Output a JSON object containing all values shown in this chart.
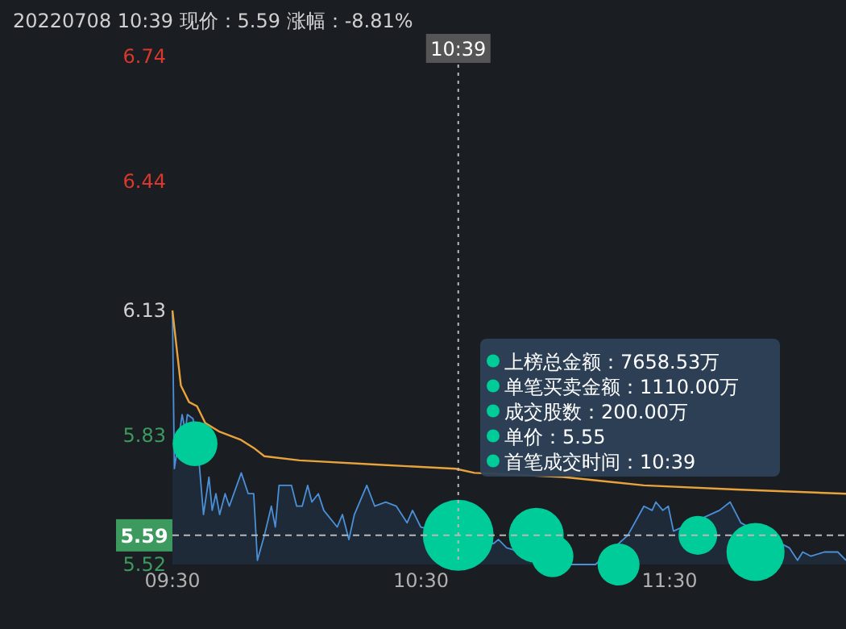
{
  "chart_data": {
    "type": "area",
    "title": "20220708 10:39 现价：5.59 涨幅：-8.81%",
    "xlim": [
      9.5,
      12.21
    ],
    "xticks": [
      {
        "value": 9.5,
        "label": "09:30"
      },
      {
        "value": 10.5,
        "label": "10:30"
      },
      {
        "value": 11.5,
        "label": "11:30"
      }
    ],
    "ylim": [
      5.52,
      6.74
    ],
    "yticks": [
      6.74,
      6.44,
      6.13,
      5.83,
      5.52
    ],
    "grid": false,
    "series": [
      {
        "type": "area",
        "color": "#4a90d9",
        "x": [
          9.5,
          9.508,
          9.539,
          9.552,
          9.56,
          9.583,
          9.604,
          9.625,
          9.647,
          9.66,
          9.675,
          9.69,
          9.712,
          9.729,
          9.777,
          9.805,
          9.827,
          9.842,
          9.87,
          9.898,
          9.914,
          9.929,
          9.979,
          10.0,
          10.022,
          10.044,
          10.061,
          10.087,
          10.109,
          10.163,
          10.184,
          10.21,
          10.232,
          10.282,
          10.314,
          10.358,
          10.401,
          10.444,
          10.466,
          10.499,
          10.791,
          10.812,
          10.845,
          11.072,
          11.202,
          11.332,
          11.397,
          11.43,
          11.445,
          11.473,
          11.495,
          11.516,
          11.701,
          11.744,
          11.787,
          11.982,
          12.015,
          12.036,
          12.069,
          12.123,
          12.177,
          12.21
        ],
        "values": [
          6.13,
          5.75,
          5.88,
          5.84,
          5.88,
          5.87,
          5.79,
          5.64,
          5.73,
          5.65,
          5.69,
          5.64,
          5.69,
          5.66,
          5.74,
          5.69,
          5.69,
          5.53,
          5.59,
          5.66,
          5.61,
          5.71,
          5.71,
          5.66,
          5.66,
          5.71,
          5.67,
          5.69,
          5.65,
          5.61,
          5.64,
          5.58,
          5.64,
          5.71,
          5.66,
          5.67,
          5.66,
          5.62,
          5.65,
          5.61,
          5.57,
          5.58,
          5.56,
          5.52,
          5.52,
          5.59,
          5.66,
          5.65,
          5.67,
          5.65,
          5.66,
          5.6,
          5.65,
          5.67,
          5.62,
          5.56,
          5.53,
          5.55,
          5.54,
          5.55,
          5.55,
          5.53
        ]
      },
      {
        "type": "line",
        "color": "#e8a33c",
        "x": [
          9.5,
          9.534,
          9.567,
          9.599,
          9.632,
          9.686,
          9.773,
          9.827,
          9.87,
          10.011,
          10.314,
          10.639,
          10.715,
          11.072,
          11.397,
          11.766,
          12.21
        ],
        "values": [
          6.13,
          5.95,
          5.91,
          5.9,
          5.86,
          5.84,
          5.82,
          5.8,
          5.78,
          5.77,
          5.76,
          5.75,
          5.74,
          5.73,
          5.71,
          5.7,
          5.69
        ]
      },
      {
        "type": "bubble",
        "color": "#00cc99",
        "x": [
          9.591,
          10.65,
          10.964,
          11.029,
          11.295,
          11.614,
          11.846
        ],
        "values": [
          5.81,
          5.59,
          5.59,
          5.54,
          5.52,
          5.59,
          5.55
        ],
        "sizes": [
          0.4,
          1,
          0.6,
          0.35,
          0.35,
          0.3,
          0.67
        ]
      }
    ],
    "ref_lines": [
      {
        "axis": "y",
        "value": 5.59,
        "label": "5.59",
        "color": "#b8b8b8",
        "line_style": "dashed"
      },
      {
        "axis": "x",
        "value": 10.65,
        "color": "#b8b8b8",
        "line_style": "dotted"
      }
    ],
    "annotations": [
      {
        "text": "10:39",
        "x": 10.65
      },
      "上榜总金额：7658.53万",
      "单笔买卖金额：1110.00万",
      "成交股数：200.00万",
      "单价：5.55",
      "首笔成交时间：10:39"
    ]
  }
}
